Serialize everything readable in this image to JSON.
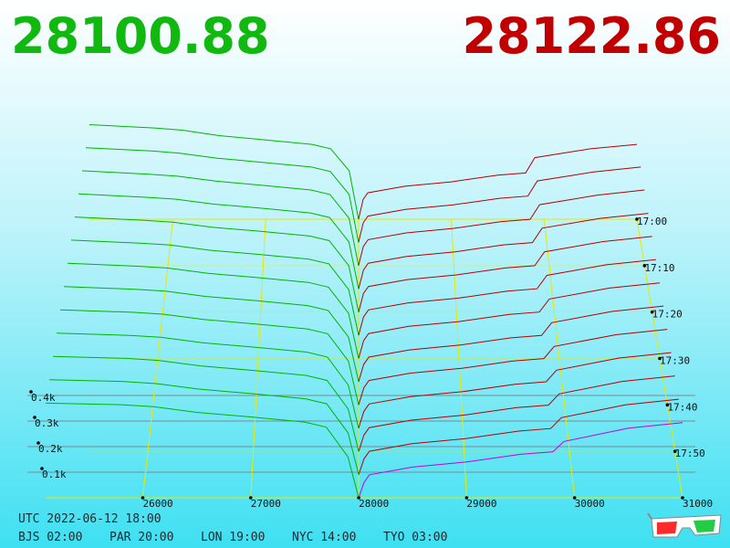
{
  "header": {
    "bid_price": 28100.88,
    "ask_price": 28122.86
  },
  "chart_data": {
    "type": "depth3d",
    "bid_color": "#00b400",
    "ask_color": "#b40000",
    "latest_ask_color": "#c000e0",
    "axis_color": "#e8e800",
    "grid_color": "#7a8a90",
    "xlim": [
      25100,
      31000
    ],
    "xticks": [
      26000,
      27000,
      28000,
      29000,
      30000,
      31000
    ],
    "yticks": [
      {
        "value": 100,
        "label": "0.1k"
      },
      {
        "value": 200,
        "label": "0.2k"
      },
      {
        "value": 300,
        "label": "0.3k"
      },
      {
        "value": 400,
        "label": "0.4k"
      }
    ],
    "zlim": [
      1020,
      1080
    ],
    "zticks": [
      {
        "value": 1020,
        "label": "17:00"
      },
      {
        "value": 1030,
        "label": "17:10"
      },
      {
        "value": 1040,
        "label": "17:20"
      },
      {
        "value": 1050,
        "label": "17:30"
      },
      {
        "value": 1060,
        "label": "17:40"
      },
      {
        "value": 1070,
        "label": "17:50"
      }
    ],
    "bid_prices": [
      25100,
      25800,
      26100,
      26500,
      27000,
      27500,
      27700,
      27900,
      28000
    ],
    "ask_prices": [
      28000,
      28050,
      28100,
      28500,
      29000,
      29500,
      29800,
      29900,
      30500,
      31000
    ],
    "slices": [
      {
        "z": 1020,
        "bid": [
          430,
          415,
          405,
          380,
          360,
          340,
          320,
          220,
          0
        ],
        "ask": [
          0,
          90,
          120,
          150,
          170,
          200,
          210,
          280,
          320,
          340
        ]
      },
      {
        "z": 1025,
        "bid": [
          425,
          410,
          400,
          378,
          358,
          338,
          318,
          215,
          0
        ],
        "ask": [
          0,
          88,
          118,
          148,
          168,
          198,
          208,
          276,
          316,
          338
        ]
      },
      {
        "z": 1030,
        "bid": [
          420,
          405,
          396,
          374,
          355,
          335,
          315,
          210,
          0
        ],
        "ask": [
          0,
          85,
          115,
          145,
          165,
          195,
          205,
          270,
          312,
          335
        ]
      },
      {
        "z": 1035,
        "bid": [
          415,
          400,
          392,
          370,
          352,
          332,
          312,
          205,
          0
        ],
        "ask": [
          0,
          82,
          112,
          142,
          162,
          192,
          202,
          265,
          308,
          330
        ]
      },
      {
        "z": 1040,
        "bid": [
          410,
          396,
          388,
          366,
          348,
          328,
          308,
          200,
          0
        ],
        "ask": [
          0,
          80,
          110,
          140,
          160,
          190,
          200,
          260,
          304,
          326
        ]
      },
      {
        "z": 1045,
        "bid": [
          405,
          392,
          384,
          362,
          344,
          324,
          304,
          195,
          0
        ],
        "ask": [
          0,
          78,
          108,
          138,
          158,
          188,
          198,
          255,
          300,
          322
        ]
      },
      {
        "z": 1050,
        "bid": [
          400,
          388,
          380,
          358,
          340,
          320,
          300,
          190,
          0
        ],
        "ask": [
          0,
          75,
          105,
          135,
          155,
          185,
          195,
          250,
          296,
          318
        ]
      },
      {
        "z": 1055,
        "bid": [
          395,
          384,
          376,
          354,
          336,
          316,
          296,
          185,
          0
        ],
        "ask": [
          0,
          72,
          102,
          132,
          152,
          182,
          192,
          245,
          292,
          314
        ]
      },
      {
        "z": 1060,
        "bid": [
          390,
          380,
          372,
          350,
          332,
          312,
          292,
          180,
          0
        ],
        "ask": [
          0,
          70,
          100,
          130,
          150,
          180,
          190,
          240,
          288,
          310
        ]
      },
      {
        "z": 1065,
        "bid": [
          385,
          376,
          368,
          346,
          328,
          308,
          288,
          175,
          0
        ],
        "ask": [
          0,
          68,
          98,
          128,
          148,
          178,
          188,
          235,
          284,
          306
        ]
      },
      {
        "z": 1070,
        "bid": [
          380,
          372,
          364,
          342,
          324,
          304,
          284,
          170,
          0
        ],
        "ask": [
          0,
          65,
          95,
          125,
          145,
          175,
          185,
          230,
          280,
          302
        ]
      },
      {
        "z": 1075,
        "bid": [
          375,
          368,
          360,
          338,
          320,
          300,
          280,
          165,
          0
        ],
        "ask": [
          0,
          62,
          92,
          122,
          142,
          172,
          182,
          225,
          276,
          298
        ]
      },
      {
        "z": 1080,
        "bid": [
          370,
          364,
          356,
          334,
          316,
          296,
          276,
          160,
          0
        ],
        "ask": [
          0,
          60,
          90,
          120,
          140,
          170,
          180,
          220,
          272,
          294
        ]
      }
    ]
  },
  "footer": {
    "utc": "UTC 2022-06-12 18:00",
    "zones": [
      "BJS 02:00",
      "PAR 20:00",
      "LON 19:00",
      "NYC 14:00",
      "TYO 03:00"
    ]
  }
}
